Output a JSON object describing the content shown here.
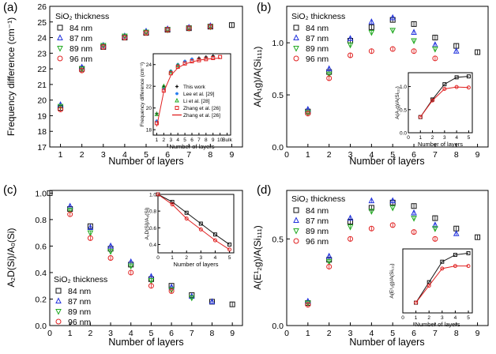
{
  "chart_data": [
    {
      "panel": "(a)",
      "type": "scatter",
      "xlabel": "Number of layers",
      "ylabel": "Frequency difference (cm⁻¹)",
      "xlim": [
        0.5,
        9.5
      ],
      "ylim": [
        17,
        26
      ],
      "xticks": [
        "1",
        "2",
        "3",
        "4",
        "5",
        "6",
        "7",
        "8",
        "9"
      ],
      "yticks": [
        "17",
        "18",
        "19",
        "20",
        "21",
        "22",
        "23",
        "24",
        "25",
        "26"
      ],
      "legend_title": "SiO₂ thickness",
      "legend_loc": "upper-left",
      "series": [
        {
          "name": "84 nm",
          "marker": "square",
          "color": "#111111",
          "x": [
            1,
            2,
            3,
            4,
            5,
            6,
            7,
            8,
            9
          ],
          "y": [
            19.5,
            22.0,
            23.4,
            24.0,
            24.3,
            24.5,
            24.6,
            24.7,
            24.8
          ]
        },
        {
          "name": "87 nm",
          "marker": "triangle-up",
          "color": "#2233dd",
          "x": [
            1,
            2,
            3,
            4,
            5,
            6,
            7,
            8
          ],
          "y": [
            19.7,
            22.1,
            23.5,
            24.1,
            24.4,
            24.55,
            24.65,
            24.75
          ]
        },
        {
          "name": "89 nm",
          "marker": "triangle-down",
          "color": "#22aa22",
          "x": [
            1,
            2,
            3,
            4,
            5,
            6,
            7,
            8
          ],
          "y": [
            19.6,
            22.0,
            23.5,
            24.1,
            24.35,
            24.5,
            24.6,
            24.7
          ]
        },
        {
          "name": "96 nm",
          "marker": "circle",
          "color": "#e02020",
          "x": [
            1,
            2,
            3,
            4,
            5,
            6,
            7,
            8
          ],
          "y": [
            19.4,
            21.9,
            23.4,
            24.0,
            24.3,
            24.5,
            24.6,
            24.7
          ]
        }
      ],
      "inset": {
        "xlabel": "Number of layers",
        "ylabel": "Frequency difference (cm⁻¹)",
        "xticks": [
          "1",
          "2",
          "3",
          "4",
          "5",
          "6",
          "7",
          "8",
          "9",
          "10",
          "Bulk"
        ],
        "yticks": [
          "18",
          "20",
          "22",
          "24"
        ],
        "ylim": [
          17.5,
          25
        ],
        "series": [
          {
            "name": "This work",
            "marker": "plus",
            "color": "#111111",
            "x": [
              1,
              2,
              3,
              4,
              5,
              6,
              7,
              8,
              9
            ],
            "y": [
              19.5,
              22.0,
              23.4,
              24.0,
              24.3,
              24.5,
              24.6,
              24.7,
              24.8
            ]
          },
          {
            "name": "Lee et al. [29]",
            "marker": "star",
            "color": "#2a7ff0",
            "x": [
              1,
              2,
              3,
              4,
              5,
              6
            ],
            "y": [
              18.8,
              21.8,
              23.4,
              24.0,
              24.3,
              24.5
            ]
          },
          {
            "name": "Li et al. [28]",
            "marker": "triangle-up",
            "color": "#22aa22",
            "x": [
              1,
              2,
              3,
              4
            ],
            "y": [
              19.4,
              22.0,
              23.3,
              23.9
            ]
          },
          {
            "name": "Zhang et al. [26]",
            "marker": "square",
            "color": "#e02020",
            "x": [
              1,
              2,
              3,
              4,
              5,
              6,
              7,
              8,
              9,
              10
            ],
            "y": [
              18.6,
              21.6,
              23.2,
              23.8,
              24.1,
              24.3,
              24.4,
              24.5,
              24.6,
              24.7
            ]
          },
          {
            "name": "Zhang et al. [26]",
            "marker": "line",
            "color": "#e02020",
            "x": [
              1,
              2,
              3,
              4,
              5,
              6,
              7,
              8,
              9,
              10
            ],
            "y": [
              18.3,
              21.5,
              23.0,
              23.7,
              24.05,
              24.25,
              24.4,
              24.5,
              24.55,
              24.6
            ]
          }
        ]
      }
    },
    {
      "panel": "(b)",
      "type": "scatter",
      "xlabel": "Number of layers",
      "ylabel": "A(A₁g)/A(Si₁₁₁)",
      "xlim": [
        0,
        9.5
      ],
      "ylim": [
        0,
        1.35
      ],
      "xticks": [
        "0",
        "1",
        "2",
        "3",
        "4",
        "5",
        "6",
        "7",
        "8",
        "9"
      ],
      "yticks": [
        "0.0",
        "0.5",
        "1.0"
      ],
      "legend_title": "SiO₂ thickness",
      "legend_loc": "upper-left",
      "series": [
        {
          "name": "84 nm",
          "marker": "square",
          "color": "#111111",
          "x": [
            1,
            2,
            3,
            4,
            5,
            6,
            7,
            8,
            9
          ],
          "y": [
            0.34,
            0.72,
            1.02,
            1.15,
            1.22,
            1.18,
            1.05,
            0.97,
            0.91
          ]
        },
        {
          "name": "87 nm",
          "marker": "triangle-up",
          "color": "#2233dd",
          "x": [
            1,
            2,
            3,
            4,
            5,
            6,
            7,
            8
          ],
          "y": [
            0.36,
            0.75,
            1.04,
            1.2,
            1.24,
            1.1,
            0.98,
            0.92
          ]
        },
        {
          "name": "89 nm",
          "marker": "triangle-down",
          "color": "#22aa22",
          "x": [
            1,
            2,
            3,
            4,
            5,
            6,
            7
          ],
          "y": [
            0.33,
            0.7,
            0.98,
            1.1,
            1.12,
            1.02,
            0.94
          ]
        },
        {
          "name": "96 nm",
          "marker": "circle",
          "color": "#e02020",
          "x": [
            1,
            2,
            3,
            4,
            5,
            6,
            7
          ],
          "y": [
            0.32,
            0.66,
            0.88,
            0.92,
            0.94,
            0.92,
            0.85
          ]
        }
      ],
      "inset": {
        "xlabel": "Number of layers",
        "ylabel": "A(A₁g)/A(Si₁₁₁)",
        "xticks": [
          "0",
          "1",
          "2",
          "3",
          "4",
          "5"
        ],
        "yticks": [
          "0.0",
          "0.5",
          "1.0"
        ],
        "ylim": [
          0,
          1.3
        ],
        "series": [
          {
            "name": "black",
            "marker": "square",
            "color": "#111111",
            "x": [
              1,
              2,
              3,
              4,
              5
            ],
            "y": [
              0.34,
              0.72,
              1.05,
              1.2,
              1.22
            ]
          },
          {
            "name": "red",
            "marker": "circle",
            "color": "#e02020",
            "x": [
              1,
              2,
              3,
              4,
              5
            ],
            "y": [
              0.34,
              0.7,
              0.95,
              0.99,
              0.98
            ]
          }
        ]
      }
    },
    {
      "panel": "(c)",
      "type": "scatter",
      "xlabel": "Number of layers",
      "ylabel": "A₂D(Si)/A₀(Si)",
      "xlim": [
        0,
        9.5
      ],
      "ylim": [
        0,
        1.02
      ],
      "xticks": [
        "0",
        "1",
        "2",
        "3",
        "4",
        "5",
        "6",
        "7",
        "8",
        "9"
      ],
      "yticks": [
        "0.0",
        "0.2",
        "0.4",
        "0.6",
        "0.8",
        "1.0"
      ],
      "legend_title": "SiO₂ thickness",
      "legend_loc": "lower-left",
      "series": [
        {
          "name": "84 nm",
          "marker": "square",
          "color": "#111111",
          "x": [
            0,
            1,
            2,
            3,
            4,
            5,
            6,
            7,
            8,
            9
          ],
          "y": [
            1.0,
            0.88,
            0.75,
            0.58,
            0.46,
            0.35,
            0.3,
            0.23,
            0.18,
            0.16
          ]
        },
        {
          "name": "87 nm",
          "marker": "triangle-up",
          "color": "#2233dd",
          "x": [
            1,
            2,
            3,
            4,
            5,
            6,
            7,
            8
          ],
          "y": [
            0.9,
            0.74,
            0.6,
            0.48,
            0.37,
            0.29,
            0.22,
            0.18
          ]
        },
        {
          "name": "89 nm",
          "marker": "triangle-down",
          "color": "#22aa22",
          "x": [
            1,
            2,
            3,
            4,
            5,
            6,
            7
          ],
          "y": [
            0.87,
            0.7,
            0.56,
            0.45,
            0.34,
            0.27,
            0.21
          ]
        },
        {
          "name": "96 nm",
          "marker": "circle",
          "color": "#e02020",
          "x": [
            1,
            2,
            3,
            4,
            5,
            6
          ],
          "y": [
            0.84,
            0.66,
            0.51,
            0.4,
            0.3,
            0.26
          ]
        }
      ],
      "inset": {
        "xlabel": "Number of layers",
        "ylabel": "A₂D(Si)/A₀(Si)",
        "xticks": [
          "0",
          "1",
          "2",
          "3",
          "4",
          "5"
        ],
        "yticks": [
          "0.4",
          "0.6",
          "0.8",
          "1.0"
        ],
        "ylim": [
          0.3,
          1.0
        ],
        "series": [
          {
            "name": "black",
            "marker": "square",
            "color": "#111111",
            "x": [
              0,
              1,
              2,
              3,
              4,
              5
            ],
            "y": [
              1.0,
              0.91,
              0.78,
              0.65,
              0.52,
              0.4
            ]
          },
          {
            "name": "red",
            "marker": "circle",
            "color": "#e02020",
            "x": [
              0,
              1,
              2,
              3,
              4,
              5
            ],
            "y": [
              1.0,
              0.88,
              0.71,
              0.58,
              0.45,
              0.34
            ]
          }
        ]
      }
    },
    {
      "panel": "(d)",
      "type": "scatter",
      "xlabel": "Number of layers",
      "ylabel": "A(E¹₂g)/A(Si₁₁₁)",
      "xlim": [
        0,
        9.5
      ],
      "ylim": [
        0,
        0.78
      ],
      "xticks": [
        "0",
        "1",
        "2",
        "3",
        "4",
        "5",
        "6",
        "7",
        "8",
        "9"
      ],
      "yticks": [
        "0.0",
        "0.5"
      ],
      "legend_title": "SiO₂ thickness",
      "legend_loc": "upper-left",
      "series": [
        {
          "name": "84 nm",
          "marker": "square",
          "color": "#111111",
          "x": [
            1,
            2,
            3,
            4,
            5,
            6,
            7,
            8,
            9
          ],
          "y": [
            0.13,
            0.38,
            0.6,
            0.68,
            0.71,
            0.69,
            0.62,
            0.56,
            0.51
          ]
        },
        {
          "name": "87 nm",
          "marker": "triangle-up",
          "color": "#2233dd",
          "x": [
            1,
            2,
            3,
            4,
            5,
            6,
            7,
            8
          ],
          "y": [
            0.14,
            0.4,
            0.62,
            0.72,
            0.72,
            0.65,
            0.58,
            0.53
          ]
        },
        {
          "name": "89 nm",
          "marker": "triangle-down",
          "color": "#22aa22",
          "x": [
            1,
            2,
            3,
            4,
            5,
            6,
            7
          ],
          "y": [
            0.13,
            0.37,
            0.57,
            0.66,
            0.68,
            0.62,
            0.56
          ]
        },
        {
          "name": "96 nm",
          "marker": "circle",
          "color": "#e02020",
          "x": [
            1,
            2,
            3,
            4,
            5,
            6,
            7
          ],
          "y": [
            0.12,
            0.34,
            0.5,
            0.56,
            0.58,
            0.54,
            0.5
          ]
        }
      ],
      "inset": {
        "xlabel": "Number of layers",
        "ylabel": "A(E¹₂g)/A(Si₁₁₁)",
        "xticks": [
          "0",
          "1",
          "2",
          "3",
          "4",
          "5"
        ],
        "yticks": [],
        "ylim": [
          0,
          0.75
        ],
        "series": [
          {
            "name": "black",
            "marker": "square",
            "color": "#111111",
            "x": [
              1,
              2,
              3,
              4,
              5
            ],
            "y": [
              0.12,
              0.36,
              0.6,
              0.68,
              0.7
            ]
          },
          {
            "name": "red",
            "marker": "circle",
            "color": "#e02020",
            "x": [
              1,
              2,
              3,
              4,
              5
            ],
            "y": [
              0.12,
              0.32,
              0.52,
              0.55,
              0.55
            ]
          }
        ]
      }
    }
  ]
}
